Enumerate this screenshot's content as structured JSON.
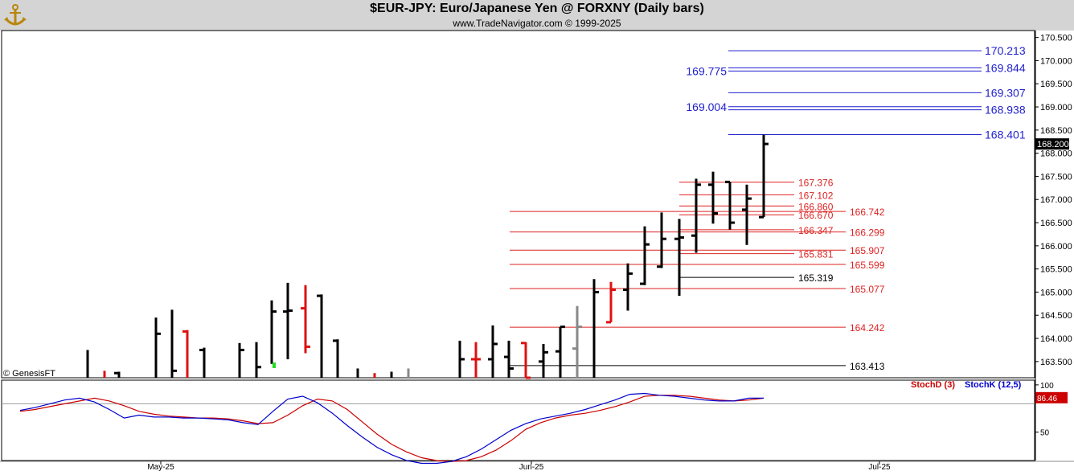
{
  "header": {
    "title": "$EUR-JPY:  Euro/Japanese Yen @ FORXNY  (Daily bars)",
    "subtitle": "www.TradeNavigator.com © 1999-2025",
    "watermark": "© GenesisFT"
  },
  "chart_data": [
    {
      "type": "ohlc",
      "title": "$EUR-JPY:  Euro/Japanese Yen @ FORXNY  (Daily bars)",
      "ylim": [
        163.15,
        170.65
      ],
      "y_ticks": [
        "170.500",
        "170.000",
        "169.500",
        "169.000",
        "168.500",
        "168.000",
        "167.500",
        "167.000",
        "166.500",
        "166.000",
        "165.500",
        "165.000",
        "164.500",
        "164.000",
        "163.500"
      ],
      "x_ticks": [
        "May-25",
        "Jun-25",
        "Jul-25"
      ],
      "last_price": "168.200",
      "bars": [
        {
          "h": 163.75,
          "l": 163.15,
          "o": null,
          "c": null,
          "color": "black"
        },
        {
          "h": 163.3,
          "l": 163.15,
          "o": null,
          "c": null,
          "color": "red"
        },
        {
          "h": 163.28,
          "l": 163.15,
          "o": 163.25,
          "c": null,
          "color": "black"
        },
        {
          "h": 164.45,
          "l": 163.15,
          "o": null,
          "c": 164.1,
          "color": "black"
        },
        {
          "h": 164.62,
          "l": 163.15,
          "o": null,
          "c": 163.3,
          "color": "black"
        },
        {
          "h": 164.18,
          "l": 163.15,
          "o": 164.15,
          "c": null,
          "color": "red"
        },
        {
          "h": 163.8,
          "l": 163.15,
          "o": 163.75,
          "c": null,
          "color": "black"
        },
        {
          "h": 163.9,
          "l": 163.15,
          "o": null,
          "c": 163.75,
          "color": "black"
        },
        {
          "h": 163.92,
          "l": 163.15,
          "o": null,
          "c": 163.38,
          "color": "black"
        },
        {
          "h": 164.82,
          "l": 163.45,
          "o": null,
          "c": 164.58,
          "color": "black"
        },
        {
          "h": 165.2,
          "l": 163.55,
          "o": 164.58,
          "c": 164.6,
          "color": "black"
        },
        {
          "h": 165.15,
          "l": 163.68,
          "o": 164.65,
          "c": 163.82,
          "color": "red"
        },
        {
          "h": 164.95,
          "l": 163.15,
          "o": 164.92,
          "c": null,
          "color": "black"
        },
        {
          "h": 163.98,
          "l": 163.15,
          "o": 163.95,
          "c": null,
          "color": "black"
        },
        {
          "h": 163.35,
          "l": 163.15,
          "o": null,
          "c": null,
          "color": "black"
        },
        {
          "h": 163.25,
          "l": 163.15,
          "o": null,
          "c": null,
          "color": "red"
        },
        {
          "h": 163.28,
          "l": 163.15,
          "o": null,
          "c": null,
          "color": "black"
        },
        {
          "h": 163.35,
          "l": 163.15,
          "o": null,
          "c": null,
          "color": "gray"
        },
        {
          "h": 163.95,
          "l": 163.15,
          "o": null,
          "c": 163.55,
          "color": "black"
        },
        {
          "h": 163.92,
          "l": 163.15,
          "o": 163.55,
          "c": 163.55,
          "color": "red"
        },
        {
          "h": 164.28,
          "l": 163.15,
          "o": 163.55,
          "c": 163.88,
          "color": "black"
        },
        {
          "h": 163.95,
          "l": 163.15,
          "o": 163.6,
          "c": 163.35,
          "color": "black"
        },
        {
          "h": 163.92,
          "l": 163.15,
          "o": 163.9,
          "c": 163.15,
          "color": "red"
        },
        {
          "h": 163.88,
          "l": 163.15,
          "o": 163.5,
          "c": 163.7,
          "color": "black"
        },
        {
          "h": 164.25,
          "l": 163.15,
          "o": 163.72,
          "c": 164.25,
          "color": "black"
        },
        {
          "h": 164.7,
          "l": 163.15,
          "o": 163.78,
          "c": 164.25,
          "color": "gray"
        },
        {
          "h": 165.28,
          "l": 163.15,
          "o": null,
          "c": 165.0,
          "color": "black"
        },
        {
          "h": 165.22,
          "l": 164.35,
          "o": 164.35,
          "c": 165.05,
          "color": "red"
        },
        {
          "h": 165.62,
          "l": 164.6,
          "o": 165.05,
          "c": 165.4,
          "color": "black"
        },
        {
          "h": 166.42,
          "l": 165.15,
          "o": 165.18,
          "c": 166.03,
          "color": "black"
        },
        {
          "h": 166.72,
          "l": 165.52,
          "o": 165.55,
          "c": 166.15,
          "color": "black"
        },
        {
          "h": 166.58,
          "l": 164.92,
          "o": 166.15,
          "c": 166.18,
          "color": "black"
        },
        {
          "h": 167.45,
          "l": 165.85,
          "o": 166.22,
          "c": 167.32,
          "color": "black"
        },
        {
          "h": 167.6,
          "l": 166.48,
          "o": 167.32,
          "c": 166.7,
          "color": "black"
        },
        {
          "h": 167.38,
          "l": 166.35,
          "o": 167.38,
          "c": 166.5,
          "color": "black"
        },
        {
          "h": 167.32,
          "l": 166.02,
          "o": 166.78,
          "c": 167.02,
          "color": "black"
        },
        {
          "h": 168.4,
          "l": 166.62,
          "o": 166.62,
          "c": 168.2,
          "color": "black"
        }
      ],
      "levels_blue": [
        {
          "price": 170.213,
          "label": "170.213",
          "side": "right"
        },
        {
          "price": 169.844,
          "label": "169.844",
          "side": "right"
        },
        {
          "price": 169.775,
          "label": "169.775",
          "side": "left"
        },
        {
          "price": 169.307,
          "label": "169.307",
          "side": "right"
        },
        {
          "price": 168.938,
          "label": "168.938",
          "side": "right"
        },
        {
          "price": 169.004,
          "label": "169.004",
          "side": "left"
        },
        {
          "price": 168.401,
          "label": "168.401",
          "side": "right"
        }
      ],
      "levels_red_upper": [
        {
          "price": 167.376,
          "label": "167.376"
        },
        {
          "price": 167.102,
          "label": "167.102"
        },
        {
          "price": 166.86,
          "label": "166.860"
        },
        {
          "price": 166.67,
          "label": "166.670"
        },
        {
          "price": 166.347,
          "label": "166.347"
        },
        {
          "price": 165.831,
          "label": "165.831"
        }
      ],
      "levels_black_upper": [
        {
          "price": 165.319,
          "label": "165.319"
        }
      ],
      "levels_red_lower": [
        {
          "price": 166.742,
          "label": "166.742"
        },
        {
          "price": 166.299,
          "label": "166.299"
        },
        {
          "price": 165.907,
          "label": "165.907"
        },
        {
          "price": 165.599,
          "label": "165.599"
        },
        {
          "price": 165.077,
          "label": "165.077"
        },
        {
          "price": 164.242,
          "label": "164.242"
        }
      ],
      "levels_black_lower": [
        {
          "price": 163.413,
          "label": "163.413"
        }
      ]
    },
    {
      "type": "line",
      "title": "",
      "ylim": [
        20,
        105
      ],
      "y_ticks": [
        "100",
        "50"
      ],
      "legend": [
        "StochD (3)",
        "StochK (12,5)"
      ],
      "last_value": "86.46",
      "series": [
        {
          "name": "StochD (3)",
          "color": "#cc0000",
          "values": [
            72,
            74,
            77,
            80,
            83,
            86,
            83,
            78,
            72,
            69,
            67,
            66,
            65,
            65,
            64,
            62,
            59,
            60,
            68,
            78,
            85,
            83,
            74,
            61,
            48,
            37,
            29,
            23,
            20,
            19,
            20,
            24,
            31,
            41,
            53,
            60,
            65,
            68,
            70,
            73,
            77,
            82,
            88,
            89,
            89,
            88,
            86,
            84,
            83,
            84,
            86
          ]
        },
        {
          "name": "StochK (12,5)",
          "color": "#0000cc",
          "values": [
            73,
            76,
            80,
            84,
            86,
            82,
            74,
            65,
            68,
            66,
            66,
            65,
            65,
            64,
            63,
            60,
            58,
            72,
            85,
            88,
            81,
            70,
            57,
            45,
            34,
            26,
            20,
            17,
            17,
            19,
            24,
            32,
            42,
            52,
            59,
            64,
            67,
            70,
            74,
            79,
            84,
            90,
            91,
            89,
            88,
            86,
            84,
            83,
            83,
            86,
            86
          ]
        }
      ]
    }
  ]
}
